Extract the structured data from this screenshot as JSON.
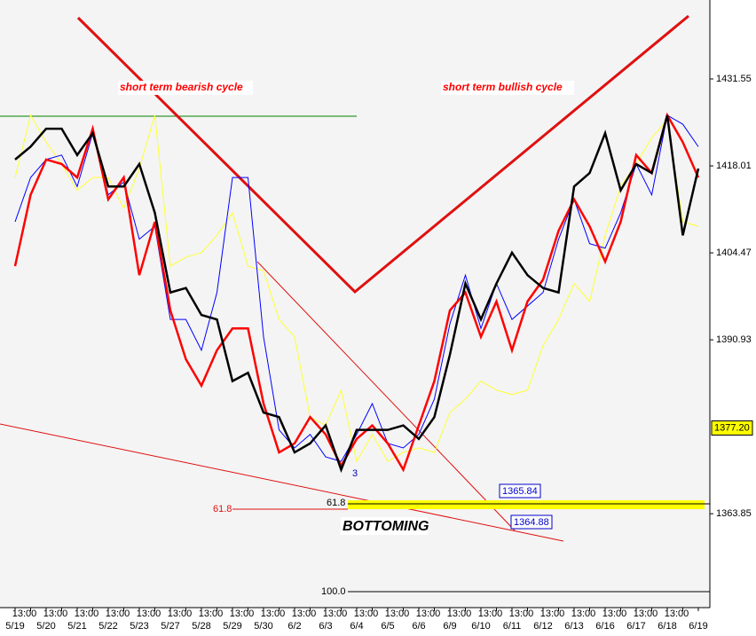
{
  "chart_data": {
    "type": "line",
    "categories": [
      "5/19",
      "13:00",
      "5/20",
      "13:00",
      "5/21",
      "13:00",
      "5/22",
      "13:00",
      "5/23",
      "13:00",
      "5/27",
      "13:00",
      "5/28",
      "13:00",
      "5/29",
      "13:00",
      "5/30",
      "13:00",
      "6/2",
      "13:00",
      "6/3",
      "13:00",
      "6/4",
      "13:00",
      "6/5",
      "13:00",
      "6/6",
      "13:00",
      "6/9",
      "13:00",
      "6/10",
      "13:00",
      "6/11",
      "13:00",
      "6/12",
      "13:00",
      "6/13",
      "13:00",
      "6/16",
      "13:00",
      "6/17",
      "13:00",
      "6/18",
      "13:00",
      "6/19"
    ],
    "series": [
      {
        "color": "#ffff33",
        "values": [
          1416.2,
          1425.9,
          1421.7,
          1418.3,
          1414.2,
          1416.2,
          1416.2,
          1411.4,
          1417.6,
          1425.9,
          1402.4,
          1403.8,
          1404.5,
          1407.2,
          1410.7,
          1402.4,
          1401.7,
          1394.1,
          1391.4,
          1378.9,
          1377.6,
          1383.1,
          1372.0,
          1376.2,
          1372.0,
          1373.4,
          1374.1,
          1373.4,
          1379.6,
          1381.7,
          1384.5,
          1383.1,
          1382.4,
          1383.1,
          1390.0,
          1394.1,
          1399.7,
          1396.9,
          1407.2,
          1414.8,
          1418.3,
          1422.4,
          1425.2,
          1409.3,
          1408.6
        ]
      },
      {
        "color": "#0000ff",
        "values": [
          1409.3,
          1416.2,
          1419.0,
          1419.7,
          1414.8,
          1423.1,
          1413.5,
          1415.5,
          1406.6,
          1408.6,
          1394.1,
          1394.1,
          1389.3,
          1398.3,
          1416.2,
          1416.2,
          1391.4,
          1376.9,
          1374.1,
          1376.2,
          1372.7,
          1372.0,
          1376.2,
          1381.0,
          1374.8,
          1374.1,
          1376.2,
          1381.7,
          1393.4,
          1401.0,
          1392.7,
          1399.7,
          1394.1,
          1396.2,
          1398.3,
          1406.6,
          1412.8,
          1405.9,
          1405.2,
          1410.7,
          1418.3,
          1413.5,
          1425.9,
          1424.5,
          1421.0
        ]
      },
      {
        "color": "#ff0000",
        "values": [
          1402.4,
          1413.5,
          1419.0,
          1418.3,
          1416.2,
          1423.8,
          1412.8,
          1416.2,
          1401.0,
          1409.3,
          1395.5,
          1387.9,
          1383.8,
          1389.3,
          1392.7,
          1392.7,
          1381.0,
          1373.4,
          1374.8,
          1378.9,
          1376.2,
          1371.3,
          1375.5,
          1377.6,
          1374.8,
          1370.7,
          1377.6,
          1384.5,
          1395.5,
          1398.3,
          1391.4,
          1396.9,
          1389.3,
          1396.9,
          1400.3,
          1407.9,
          1412.8,
          1408.6,
          1403.1,
          1409.3,
          1419.7,
          1416.9,
          1425.9,
          1421.7,
          1416.2
        ]
      },
      {
        "color": "#000000",
        "values": [
          1419.0,
          1421.0,
          1423.8,
          1423.8,
          1419.7,
          1423.1,
          1414.8,
          1414.8,
          1418.3,
          1410.7,
          1398.3,
          1399.0,
          1394.8,
          1394.1,
          1384.5,
          1385.8,
          1379.6,
          1378.9,
          1373.4,
          1374.8,
          1377.6,
          1370.7,
          1376.9,
          1376.9,
          1376.9,
          1377.6,
          1375.5,
          1378.9,
          1388.6,
          1399.7,
          1394.1,
          1399.7,
          1404.5,
          1401.0,
          1399.0,
          1398.3,
          1414.8,
          1416.9,
          1423.1,
          1414.2,
          1418.3,
          1416.9,
          1425.9,
          1407.2,
          1417.6
        ]
      }
    ],
    "ylim": [
      1350.2,
      1443.84
    ],
    "yticks": [
      1431.55,
      1418.01,
      1404.47,
      1390.93,
      1363.85
    ],
    "last_price": {
      "value": 1377.2,
      "label": "1377.20"
    },
    "annotations": {
      "bearish": "short term bearish cycle",
      "bullish": "short term bullish cycle",
      "bottoming": "BOTTOMING",
      "fib_left": "61.8",
      "fib_mid": "61.8",
      "fib_100": "100.0",
      "level_a": "1365.84",
      "level_b": "1364.88",
      "wave": "3"
    }
  }
}
